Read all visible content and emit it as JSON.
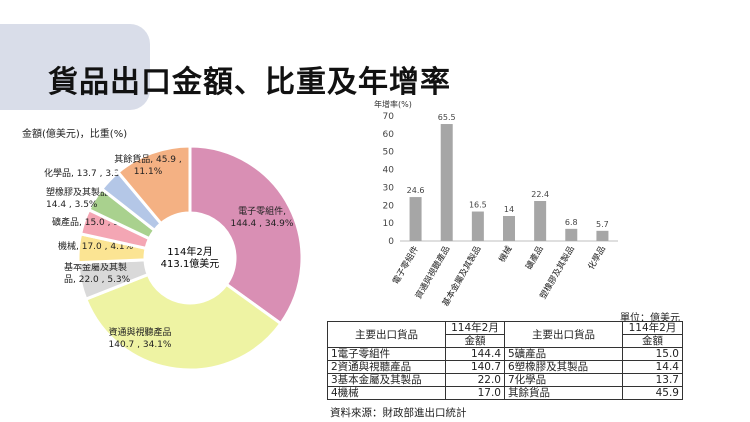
{
  "title": "貨品出口金額、比重及年增率",
  "chart_data": [
    {
      "type": "pie",
      "unit_label": "金額(億美元)，比重(%)",
      "center_label": [
        "114年2月",
        "413.1億美元"
      ],
      "slices": [
        {
          "name": "電子零組件",
          "value": 144.4,
          "share": 34.9,
          "color": "#d98fb4",
          "label": [
            "電子零組件,",
            "144.4 , 34.9%"
          ]
        },
        {
          "name": "資通與視聽產品",
          "value": 140.7,
          "share": 34.1,
          "color": "#eef3a3",
          "label": [
            "資通與視聽產品",
            "140.7 , 34.1%"
          ]
        },
        {
          "name": "基本金屬及其製品",
          "value": 22.0,
          "share": 5.3,
          "color": "#d9d9d9",
          "label": [
            "基本金屬及其製",
            "品, 22.0 , 5.3%"
          ]
        },
        {
          "name": "機械",
          "value": 17.0,
          "share": 4.1,
          "color": "#fbe493",
          "label": [
            "機械, 17.0 , 4.1%"
          ]
        },
        {
          "name": "礦產品",
          "value": 15.0,
          "share": 3.6,
          "color": "#f4a6b4",
          "label": [
            "礦產品, 15.0 , 3.6%"
          ]
        },
        {
          "name": "塑橡膠及其製品",
          "value": 14.4,
          "share": 3.5,
          "color": "#a9d18e",
          "label": [
            "塑橡膠及其製品,",
            "14.4 , 3.5%"
          ]
        },
        {
          "name": "化學品",
          "value": 13.7,
          "share": 3.3,
          "color": "#b4c7e7",
          "label": [
            "化學品, 13.7 , 3.3%"
          ]
        },
        {
          "name": "其餘貨品",
          "value": 45.9,
          "share": 11.1,
          "color": "#f4b183",
          "label": [
            "其餘貨品, 45.9 ,",
            "11.1%"
          ]
        }
      ]
    },
    {
      "type": "bar",
      "ylabel": "年增率(%)",
      "ylim": [
        0,
        70
      ],
      "yticks": [
        0,
        10,
        20,
        30,
        40,
        50,
        60,
        70
      ],
      "categories": [
        "電子零組件",
        "資通與視聽產品",
        "基本金屬及其製品",
        "機械",
        "礦產品",
        "塑橡膠及其製品",
        "化學品"
      ],
      "values": [
        24.6,
        65.5,
        16.5,
        14.0,
        22.4,
        6.8,
        5.7
      ],
      "color": "#a6a6a6"
    }
  ],
  "table": {
    "unit": "單位：億美元",
    "headers": {
      "item": "主要出口貨品",
      "period": "114年2月",
      "amount": "金額"
    },
    "rows": [
      {
        "left_item": "1電子零組件",
        "left_value": "144.4",
        "right_item": "5礦產品",
        "right_value": "15.0"
      },
      {
        "left_item": "2資通與視聽產品",
        "left_value": "140.7",
        "right_item": "6塑橡膠及其製品",
        "right_value": "14.4"
      },
      {
        "left_item": "3基本金屬及其製品",
        "left_value": "22.0",
        "right_item": "7化學品",
        "right_value": "13.7"
      },
      {
        "left_item": "4機械",
        "left_value": "17.0",
        "right_item": "其餘貨品",
        "right_value": "45.9"
      }
    ]
  },
  "source": "資料來源：財政部進出口統計"
}
